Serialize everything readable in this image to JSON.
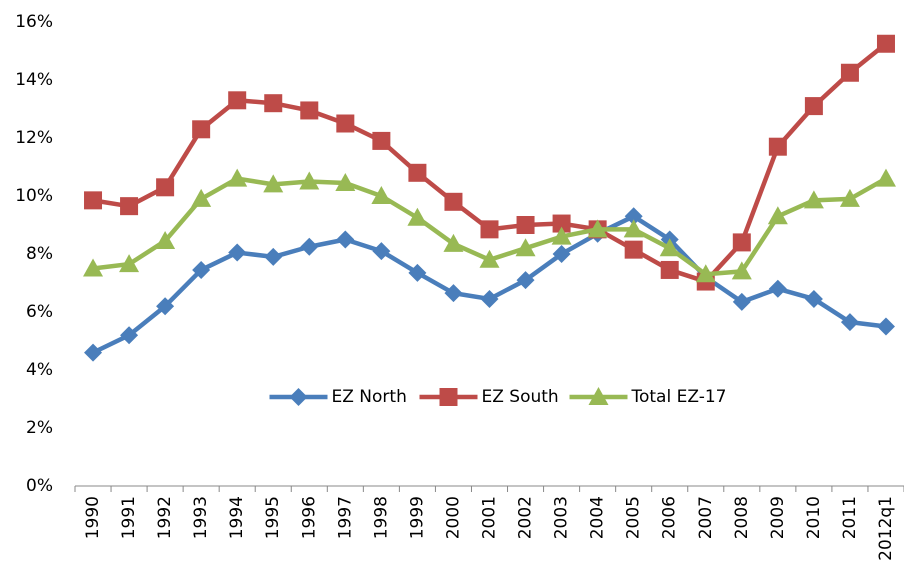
{
  "chart_data": {
    "type": "line",
    "categories": [
      "1990",
      "1991",
      "1992",
      "1993",
      "1994",
      "1995",
      "1996",
      "1997",
      "1998",
      "1999",
      "2000",
      "2001",
      "2002",
      "2003",
      "2004",
      "2005",
      "2006",
      "2007",
      "2008",
      "2009",
      "2010",
      "2011",
      "2012q1"
    ],
    "series": [
      {
        "name": "EZ North",
        "color": "#4a7ebb",
        "marker": "diamond",
        "values": [
          4.6,
          5.2,
          6.2,
          7.45,
          8.05,
          7.9,
          8.25,
          8.5,
          8.1,
          7.35,
          6.65,
          6.45,
          7.1,
          8.0,
          8.7,
          9.3,
          8.5,
          7.2,
          6.35,
          6.8,
          6.45,
          5.65,
          5.5
        ]
      },
      {
        "name": "EZ South",
        "color": "#be4b48",
        "marker": "square",
        "values": [
          9.85,
          9.65,
          10.3,
          12.3,
          13.3,
          13.2,
          12.95,
          12.5,
          11.9,
          10.8,
          9.8,
          8.85,
          9.0,
          9.05,
          8.85,
          8.15,
          7.45,
          7.05,
          8.4,
          11.7,
          13.1,
          14.25,
          15.25
        ]
      },
      {
        "name": "Total EZ-17",
        "color": "#98b954",
        "marker": "triangle",
        "values": [
          7.5,
          7.65,
          8.45,
          9.9,
          10.6,
          10.4,
          10.5,
          10.45,
          10.0,
          9.25,
          8.35,
          7.8,
          8.2,
          8.6,
          8.85,
          8.85,
          8.2,
          7.3,
          7.4,
          9.3,
          9.85,
          9.9,
          10.6
        ]
      }
    ],
    "ylim": [
      0,
      16
    ],
    "yticks": [
      {
        "value": 0,
        "label": "0%"
      },
      {
        "value": 2,
        "label": "2%"
      },
      {
        "value": 4,
        "label": "4%"
      },
      {
        "value": 6,
        "label": "6%"
      },
      {
        "value": 8,
        "label": "8%"
      },
      {
        "value": 10,
        "label": "10%"
      },
      {
        "value": 12,
        "label": "12%"
      },
      {
        "value": 14,
        "label": "14%"
      },
      {
        "value": 16,
        "label": "16%"
      }
    ],
    "grid": false,
    "legend": "center"
  }
}
